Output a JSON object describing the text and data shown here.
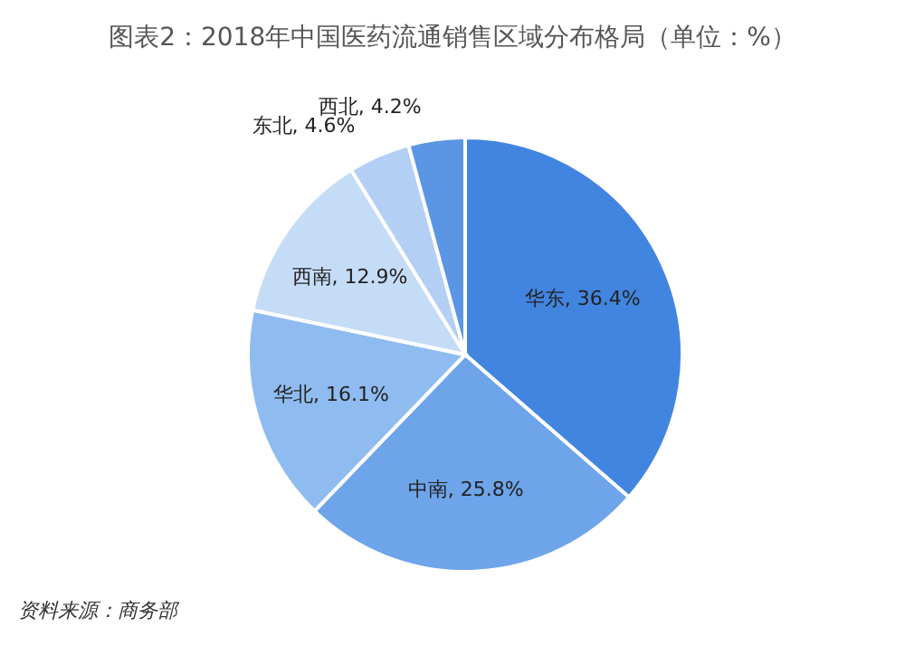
{
  "chart_data": {
    "type": "pie",
    "title": "图表2：2018年中国医药流通销售区域分布格局（单位：%）",
    "categories": [
      "华东",
      "中南",
      "华北",
      "西南",
      "东北",
      "西北"
    ],
    "values": [
      36.4,
      25.8,
      16.1,
      12.9,
      4.6,
      4.2
    ],
    "colors": [
      "#4285e0",
      "#6ea4ea",
      "#8fbcf0",
      "#c5dcf7",
      "#b3d0f4",
      "#5b96e4"
    ],
    "value_labels": [
      ", 36.4%",
      ", 25.8%",
      ", 16.1%",
      ", 12.9%",
      ", 4.6%",
      ", 4.2%"
    ],
    "legend": false,
    "annotations": [
      "资料来源：商务部"
    ]
  }
}
